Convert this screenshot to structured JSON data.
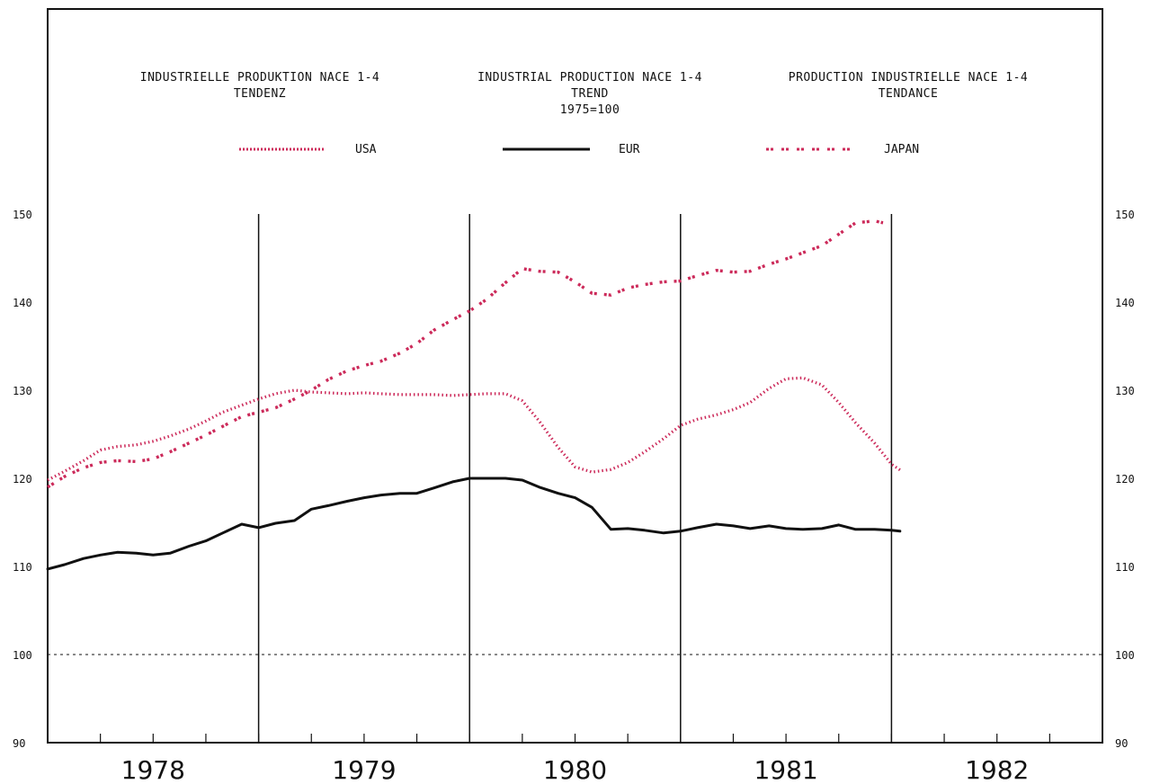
{
  "chart_data": {
    "type": "line",
    "titles": [
      {
        "lines": [
          "INDUSTRIELLE PRODUKTION NACE 1-4",
          "TENDENZ"
        ]
      },
      {
        "lines": [
          "INDUSTRIAL PRODUCTION NACE 1-4",
          "TREND",
          "1975=100"
        ]
      },
      {
        "lines": [
          "PRODUCTION INDUSTRIELLE NACE 1-4",
          "TENDANCE"
        ]
      }
    ],
    "ylim": [
      90,
      150
    ],
    "yticks": [
      90,
      100,
      110,
      120,
      130,
      140,
      150
    ],
    "xlim": [
      1977.5,
      1982.5
    ],
    "xtick_labels": [
      {
        "label": "1978",
        "x": 1978.0
      },
      {
        "label": "1979",
        "x": 1979.0
      },
      {
        "label": "1980",
        "x": 1980.0
      },
      {
        "label": "1981",
        "x": 1981.0
      },
      {
        "label": "1982",
        "x": 1982.0
      }
    ],
    "year_boundaries": [
      1978.5,
      1979.5,
      1980.5,
      1981.5
    ],
    "reference_line": 100,
    "minor_ticks_per_year": 4,
    "colors": {
      "usa": "#cc2a5a",
      "eur": "#111111",
      "japan": "#cc2a5a",
      "axis": "#111111"
    },
    "series": [
      {
        "name": "USA",
        "style": "dotted",
        "points": [
          [
            1977.5,
            119.8
          ],
          [
            1977.58,
            120.8
          ],
          [
            1977.67,
            122.0
          ],
          [
            1977.75,
            123.2
          ],
          [
            1977.83,
            123.6
          ],
          [
            1977.92,
            123.8
          ],
          [
            1978.0,
            124.2
          ],
          [
            1978.08,
            124.8
          ],
          [
            1978.17,
            125.6
          ],
          [
            1978.25,
            126.5
          ],
          [
            1978.33,
            127.5
          ],
          [
            1978.42,
            128.3
          ],
          [
            1978.5,
            129.0
          ],
          [
            1978.58,
            129.6
          ],
          [
            1978.67,
            130.0
          ],
          [
            1978.75,
            129.8
          ],
          [
            1978.83,
            129.7
          ],
          [
            1978.92,
            129.6
          ],
          [
            1979.0,
            129.7
          ],
          [
            1979.08,
            129.6
          ],
          [
            1979.17,
            129.5
          ],
          [
            1979.25,
            129.5
          ],
          [
            1979.33,
            129.5
          ],
          [
            1979.42,
            129.4
          ],
          [
            1979.5,
            129.5
          ],
          [
            1979.58,
            129.6
          ],
          [
            1979.67,
            129.6
          ],
          [
            1979.75,
            128.8
          ],
          [
            1979.83,
            126.5
          ],
          [
            1979.92,
            123.5
          ],
          [
            1980.0,
            121.3
          ],
          [
            1980.08,
            120.7
          ],
          [
            1980.17,
            121.0
          ],
          [
            1980.25,
            121.8
          ],
          [
            1980.33,
            123.0
          ],
          [
            1980.42,
            124.5
          ],
          [
            1980.5,
            126.0
          ],
          [
            1980.58,
            126.7
          ],
          [
            1980.67,
            127.2
          ],
          [
            1980.75,
            127.8
          ],
          [
            1980.83,
            128.6
          ],
          [
            1980.92,
            130.2
          ],
          [
            1981.0,
            131.3
          ],
          [
            1981.08,
            131.4
          ],
          [
            1981.17,
            130.6
          ],
          [
            1981.25,
            128.6
          ],
          [
            1981.33,
            126.3
          ],
          [
            1981.42,
            124.0
          ],
          [
            1981.5,
            121.6
          ],
          [
            1981.55,
            120.8
          ]
        ]
      },
      {
        "name": "EUR",
        "style": "solid",
        "points": [
          [
            1977.5,
            109.7
          ],
          [
            1977.58,
            110.2
          ],
          [
            1977.67,
            110.9
          ],
          [
            1977.75,
            111.3
          ],
          [
            1977.83,
            111.6
          ],
          [
            1977.92,
            111.5
          ],
          [
            1978.0,
            111.3
          ],
          [
            1978.08,
            111.5
          ],
          [
            1978.17,
            112.3
          ],
          [
            1978.25,
            112.9
          ],
          [
            1978.33,
            113.8
          ],
          [
            1978.42,
            114.8
          ],
          [
            1978.5,
            114.4
          ],
          [
            1978.58,
            114.9
          ],
          [
            1978.67,
            115.2
          ],
          [
            1978.75,
            116.5
          ],
          [
            1978.83,
            116.9
          ],
          [
            1978.92,
            117.4
          ],
          [
            1979.0,
            117.8
          ],
          [
            1979.08,
            118.1
          ],
          [
            1979.17,
            118.3
          ],
          [
            1979.25,
            118.3
          ],
          [
            1979.33,
            118.9
          ],
          [
            1979.42,
            119.6
          ],
          [
            1979.5,
            120.0
          ],
          [
            1979.58,
            120.0
          ],
          [
            1979.67,
            120.0
          ],
          [
            1979.75,
            119.8
          ],
          [
            1979.83,
            119.0
          ],
          [
            1979.92,
            118.3
          ],
          [
            1980.0,
            117.8
          ],
          [
            1980.08,
            116.7
          ],
          [
            1980.17,
            114.2
          ],
          [
            1980.25,
            114.3
          ],
          [
            1980.33,
            114.1
          ],
          [
            1980.42,
            113.8
          ],
          [
            1980.5,
            114.0
          ],
          [
            1980.58,
            114.4
          ],
          [
            1980.67,
            114.8
          ],
          [
            1980.75,
            114.6
          ],
          [
            1980.83,
            114.3
          ],
          [
            1980.92,
            114.6
          ],
          [
            1981.0,
            114.3
          ],
          [
            1981.08,
            114.2
          ],
          [
            1981.17,
            114.3
          ],
          [
            1981.25,
            114.7
          ],
          [
            1981.33,
            114.2
          ],
          [
            1981.42,
            114.2
          ],
          [
            1981.5,
            114.1
          ],
          [
            1981.54,
            114.0
          ]
        ]
      },
      {
        "name": "JAPAN",
        "style": "dashed",
        "points": [
          [
            1977.5,
            119.0
          ],
          [
            1977.58,
            120.2
          ],
          [
            1977.67,
            121.2
          ],
          [
            1977.75,
            121.8
          ],
          [
            1977.83,
            122.0
          ],
          [
            1977.92,
            121.9
          ],
          [
            1978.0,
            122.2
          ],
          [
            1978.08,
            123.0
          ],
          [
            1978.17,
            124.0
          ],
          [
            1978.25,
            124.9
          ],
          [
            1978.33,
            125.9
          ],
          [
            1978.42,
            127.0
          ],
          [
            1978.5,
            127.5
          ],
          [
            1978.58,
            128.0
          ],
          [
            1978.67,
            129.0
          ],
          [
            1978.75,
            130.0
          ],
          [
            1978.83,
            131.2
          ],
          [
            1978.92,
            132.2
          ],
          [
            1979.0,
            132.8
          ],
          [
            1979.08,
            133.3
          ],
          [
            1979.17,
            134.2
          ],
          [
            1979.25,
            135.3
          ],
          [
            1979.33,
            136.8
          ],
          [
            1979.42,
            138.0
          ],
          [
            1979.5,
            139.0
          ],
          [
            1979.58,
            140.3
          ],
          [
            1979.67,
            142.2
          ],
          [
            1979.75,
            143.8
          ],
          [
            1979.83,
            143.5
          ],
          [
            1979.92,
            143.4
          ],
          [
            1980.0,
            142.3
          ],
          [
            1980.08,
            141.0
          ],
          [
            1980.17,
            140.8
          ],
          [
            1980.25,
            141.6
          ],
          [
            1980.33,
            142.0
          ],
          [
            1980.42,
            142.3
          ],
          [
            1980.5,
            142.4
          ],
          [
            1980.58,
            143.0
          ],
          [
            1980.67,
            143.6
          ],
          [
            1980.75,
            143.4
          ],
          [
            1980.83,
            143.5
          ],
          [
            1980.92,
            144.3
          ],
          [
            1981.0,
            144.9
          ],
          [
            1981.08,
            145.6
          ],
          [
            1981.17,
            146.4
          ],
          [
            1981.25,
            147.7
          ],
          [
            1981.33,
            149.0
          ],
          [
            1981.42,
            149.2
          ],
          [
            1981.46,
            149.0
          ]
        ]
      }
    ]
  }
}
